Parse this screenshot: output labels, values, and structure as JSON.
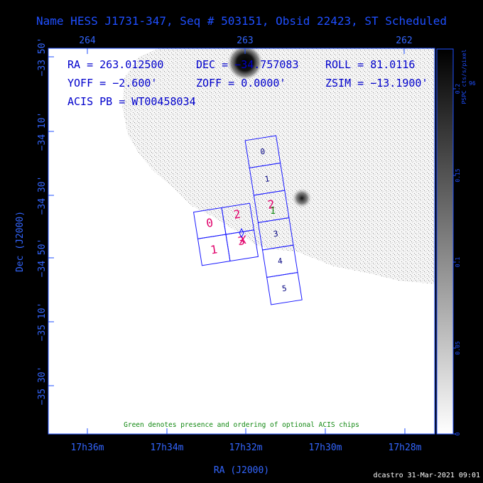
{
  "title": "Name HESS J1731-347, Seq # 503151, Obsid 22423, ST Scheduled",
  "top_axis_ticks": [
    "264",
    "263",
    "262"
  ],
  "left_axis_ticks": [
    "−33 50'",
    "−34 10'",
    "−34 30'",
    "−34 50'",
    "−35 10'",
    "−35 30'"
  ],
  "bottom_axis_ticks": [
    "17h36m",
    "17h34m",
    "17h32m",
    "17h30m",
    "17h28m"
  ],
  "x_axis_label": "RA (J2000)",
  "y_axis_label": "Dec (J2000)",
  "info": {
    "ra": "RA = 263.012500",
    "dec": "DEC = −34.757083",
    "roll": "ROLL = 81.0116",
    "yoff": "YOFF = −2.600'",
    "zoff": "ZOFF =  0.0000'",
    "zsim": "ZSIM = −13.1900'",
    "acis_pb": "ACIS PB = WT00458034"
  },
  "chips_s": [
    "0",
    "1",
    "2",
    "3",
    "4",
    "5"
  ],
  "chips_i": [
    "0",
    "2",
    "1",
    "3"
  ],
  "optional_chip": "1",
  "aimpoint_marker": "X",
  "note": "Green denotes presence and ordering of optional ACIS chips",
  "colorbar": {
    "unit_label": "PSPC cts/s/pixel",
    "ticks": [
      "0.2",
      "0.15",
      "0.1",
      "0.05",
      "0"
    ],
    "edge_label": "96"
  },
  "credit": "dcastro 31-Mar-2021 09:01",
  "colors": {
    "frame": "#1f4fff",
    "chip_outline": "#1a1aff",
    "optional": "#118811",
    "aim": "#e0006a"
  }
}
